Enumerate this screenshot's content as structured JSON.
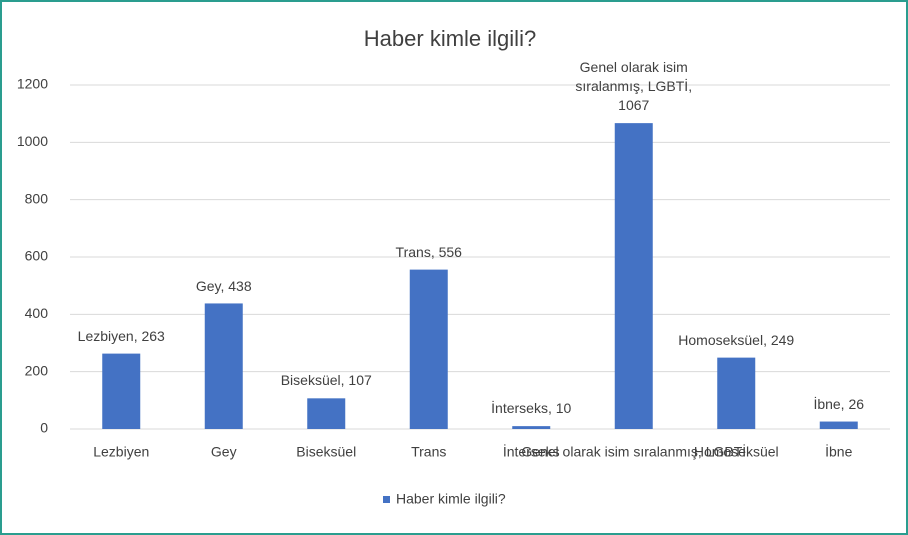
{
  "chart_data": {
    "type": "bar",
    "title": "Haber kimle ilgili?",
    "categories": [
      "Lezbiyen",
      "Gey",
      "Biseksüel",
      "Trans",
      "İnterseks",
      "Genel olarak isim sıralanmış, LGBTİ",
      "Homoseksüel",
      "İbne"
    ],
    "series": [
      {
        "name": "Haber kimle ilgili?",
        "color": "#4472c4",
        "values": [
          263,
          438,
          107,
          556,
          10,
          1067,
          249,
          26
        ],
        "value_labels": [
          "Lezbiyen, 263",
          "Gey, 438",
          "Biseksüel, 107",
          "Trans, 556",
          "İnterseks, 10",
          "Genel olarak isim sıralanmış, LGBTİ, 1067",
          "Homoseksüel, 249",
          "İbne, 26"
        ]
      }
    ],
    "ylim": [
      0,
      1200
    ],
    "yticks": [
      0,
      200,
      400,
      600,
      800,
      1000,
      1200
    ],
    "grid": true,
    "legend": "bottom"
  }
}
